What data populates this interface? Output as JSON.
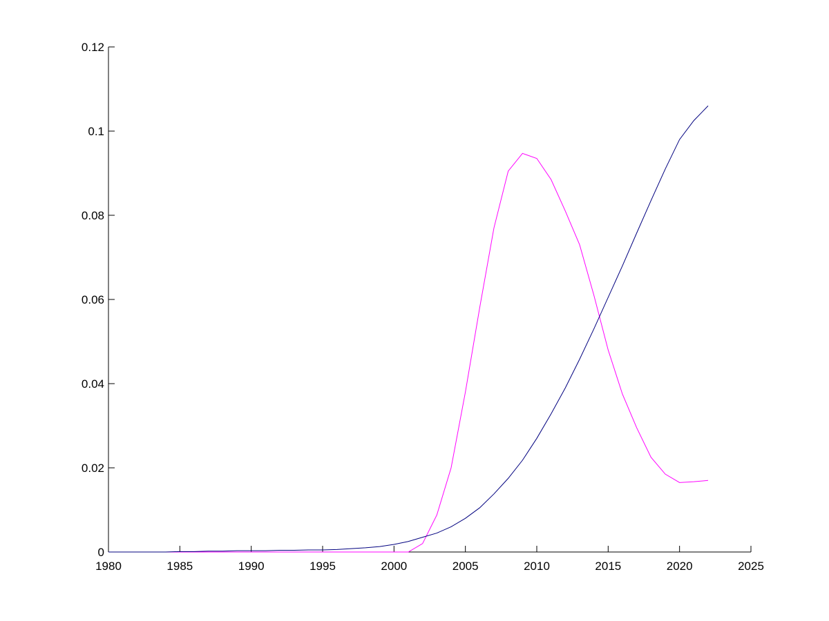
{
  "chart_data": {
    "type": "line",
    "x": [
      1980,
      1981,
      1982,
      1983,
      1984,
      1985,
      1986,
      1987,
      1988,
      1989,
      1990,
      1991,
      1992,
      1993,
      1994,
      1995,
      1996,
      1997,
      1998,
      1999,
      2000,
      2001,
      2002,
      2003,
      2004,
      2005,
      2006,
      2007,
      2008,
      2009,
      2010,
      2011,
      2012,
      2013,
      2014,
      2015,
      2016,
      2017,
      2018,
      2019,
      2020,
      2021,
      2022
    ],
    "series": [
      {
        "color": "#00007f",
        "values": [
          0,
          0,
          0,
          0,
          0,
          0.0001,
          0.0001,
          0.0002,
          0.0002,
          0.0003,
          0.0003,
          0.0003,
          0.0004,
          0.0004,
          0.0005,
          0.0005,
          0.0006,
          0.0008,
          0.001,
          0.0013,
          0.0018,
          0.0025,
          0.0035,
          0.0045,
          0.006,
          0.008,
          0.0105,
          0.0138,
          0.0175,
          0.0218,
          0.027,
          0.0328,
          0.039,
          0.0458,
          0.053,
          0.0605,
          0.068,
          0.0758,
          0.0835,
          0.091,
          0.098,
          0.1025,
          0.106
        ]
      },
      {
        "color": "#ff00ff",
        "values": [
          0,
          0,
          0,
          0,
          0,
          0,
          0,
          0,
          0,
          0,
          0,
          0,
          0,
          0,
          0,
          0,
          0,
          0,
          0,
          0,
          0,
          0,
          0.002,
          0.0088,
          0.02,
          0.038,
          0.058,
          0.077,
          0.0905,
          0.0947,
          0.0935,
          0.0885,
          0.081,
          0.073,
          0.061,
          0.048,
          0.0375,
          0.0295,
          0.0225,
          0.0185,
          0.0165,
          0.0167,
          0.017
        ]
      }
    ],
    "xlim": [
      1980,
      2025
    ],
    "xticks": [
      1980,
      1985,
      1990,
      1995,
      2000,
      2005,
      2010,
      2015,
      2020,
      2025
    ],
    "ylim": [
      0,
      0.12
    ],
    "yticks": [
      0,
      0.02,
      0.04,
      0.06,
      0.08,
      0.1,
      0.12
    ]
  }
}
